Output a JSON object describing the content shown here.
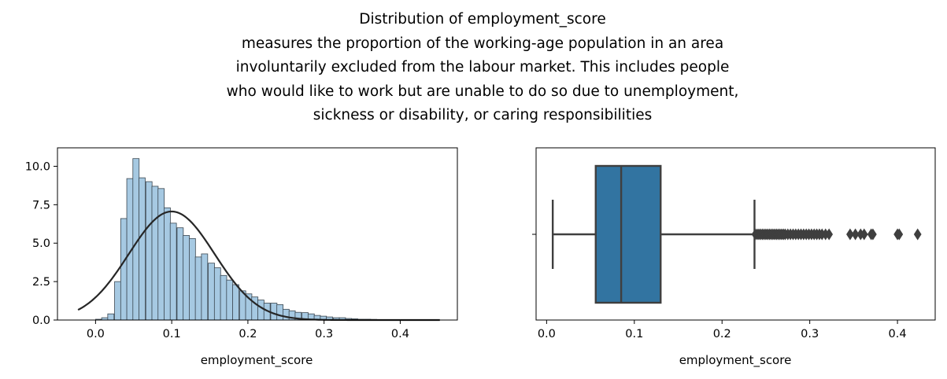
{
  "title_lines": [
    "Distribution of employment_score",
    "measures the proportion of the working-age population in an area",
    "involuntarily excluded from the labour market. This includes people",
    "who would like to work but are unable to do so due to unemployment,",
    "sickness or disability, or caring responsibilities"
  ],
  "colors": {
    "hist_fill": "#a6c9e2",
    "hist_edge": "#3a4650",
    "kde_line": "#262626",
    "box_fill": "#3274a1",
    "box_line": "#3f3f3f"
  },
  "chart_data": [
    {
      "type": "bar",
      "subtype": "histogram_with_normal_fit",
      "xlabel": "employment_score",
      "ylabel": "",
      "xlim": [
        -0.05,
        0.475
      ],
      "ylim": [
        0,
        11.2
      ],
      "xticks": [
        "0.0",
        "0.1",
        "0.2",
        "0.3",
        "0.4"
      ],
      "yticks": [
        "0.0",
        "2.5",
        "5.0",
        "7.5",
        "10.0"
      ],
      "bin_width": 0.0082,
      "bin_starts": [
        0.0,
        0.008,
        0.016,
        0.025,
        0.033,
        0.041,
        0.049,
        0.057,
        0.066,
        0.074,
        0.082,
        0.09,
        0.098,
        0.107,
        0.115,
        0.123,
        0.131,
        0.139,
        0.148,
        0.156,
        0.164,
        0.172,
        0.18,
        0.189,
        0.197,
        0.205,
        0.213,
        0.221,
        0.23,
        0.238,
        0.246,
        0.254,
        0.262,
        0.271,
        0.279,
        0.287,
        0.295,
        0.303,
        0.312,
        0.32,
        0.328,
        0.336,
        0.344,
        0.353,
        0.361,
        0.369,
        0.377,
        0.385,
        0.394,
        0.402,
        0.41,
        0.418
      ],
      "values": [
        0.05,
        0.15,
        0.4,
        2.5,
        6.6,
        9.2,
        10.5,
        9.25,
        9.0,
        8.7,
        8.55,
        7.3,
        6.3,
        6.0,
        5.5,
        5.3,
        4.1,
        4.3,
        3.7,
        3.4,
        2.9,
        2.6,
        2.3,
        1.9,
        1.7,
        1.5,
        1.3,
        1.1,
        1.1,
        1.0,
        0.7,
        0.6,
        0.5,
        0.48,
        0.4,
        0.3,
        0.25,
        0.2,
        0.15,
        0.15,
        0.1,
        0.08,
        0.05,
        0.05,
        0.04,
        0.03,
        0.03,
        0.03,
        0.02,
        0.02,
        0.02,
        0.02
      ],
      "fit": {
        "distribution": "normal",
        "mean": 0.1,
        "std": 0.0565,
        "x_range": [
          -0.023,
          0.452
        ]
      }
    },
    {
      "type": "box",
      "orientation": "horizontal",
      "xlabel": "employment_score",
      "xlim": [
        -0.012,
        0.443
      ],
      "xticks": [
        "0.0",
        "0.1",
        "0.2",
        "0.3",
        "0.4"
      ],
      "whisker_low": 0.007,
      "q1": 0.056,
      "median": 0.085,
      "q3": 0.13,
      "whisker_high": 0.237,
      "outliers": [
        0.238,
        0.24,
        0.242,
        0.244,
        0.246,
        0.248,
        0.25,
        0.252,
        0.254,
        0.256,
        0.258,
        0.26,
        0.262,
        0.264,
        0.266,
        0.268,
        0.27,
        0.272,
        0.275,
        0.278,
        0.281,
        0.284,
        0.287,
        0.29,
        0.293,
        0.296,
        0.299,
        0.302,
        0.305,
        0.308,
        0.311,
        0.314,
        0.318,
        0.322,
        0.346,
        0.352,
        0.358,
        0.362,
        0.37,
        0.372,
        0.4,
        0.402,
        0.423
      ]
    }
  ]
}
